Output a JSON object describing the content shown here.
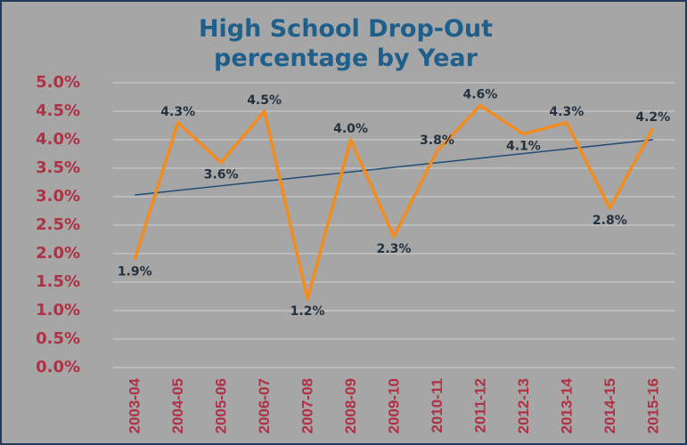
{
  "chart_data": {
    "type": "line",
    "title": "High School Drop-Out percentage by Year",
    "categories": [
      "2003-04",
      "2004-05",
      "2005-06",
      "2006-07",
      "2007-08",
      "2008-09",
      "2009-10",
      "2010-11",
      "2011-12",
      "2012-13",
      "2013-14",
      "2014-15",
      "2015-16"
    ],
    "series": [
      {
        "name": "Drop-Out percentage",
        "color": "#f28c1e",
        "values": [
          1.9,
          4.3,
          3.6,
          4.5,
          1.2,
          4.0,
          2.3,
          3.8,
          4.6,
          4.1,
          4.3,
          2.8,
          4.2
        ],
        "value_labels": [
          "1.9%",
          "4.3%",
          "3.6%",
          "4.5%",
          "1.2%",
          "4.0%",
          "2.3%",
          "3.8%",
          "4.6%",
          "4.1%",
          "4.3%",
          "2.8%",
          "4.2%"
        ]
      }
    ],
    "trendline": {
      "color": "#1f4e79",
      "values": [
        3.03,
        4.0
      ]
    },
    "ylim": [
      0,
      5
    ],
    "yticks": [
      {
        "value": 0,
        "label": "0.0%"
      },
      {
        "value": 0.5,
        "label": "0.5%"
      },
      {
        "value": 1,
        "label": "1.0%"
      },
      {
        "value": 1.5,
        "label": "1.5%"
      },
      {
        "value": 2,
        "label": "2.0%"
      },
      {
        "value": 2.5,
        "label": "2.5%"
      },
      {
        "value": 3,
        "label": "3.0%"
      },
      {
        "value": 3.5,
        "label": "3.5%"
      },
      {
        "value": 4,
        "label": "4.0%"
      },
      {
        "value": 4.5,
        "label": "4.5%"
      },
      {
        "value": 5,
        "label": "5.0%"
      }
    ],
    "grid": true
  }
}
